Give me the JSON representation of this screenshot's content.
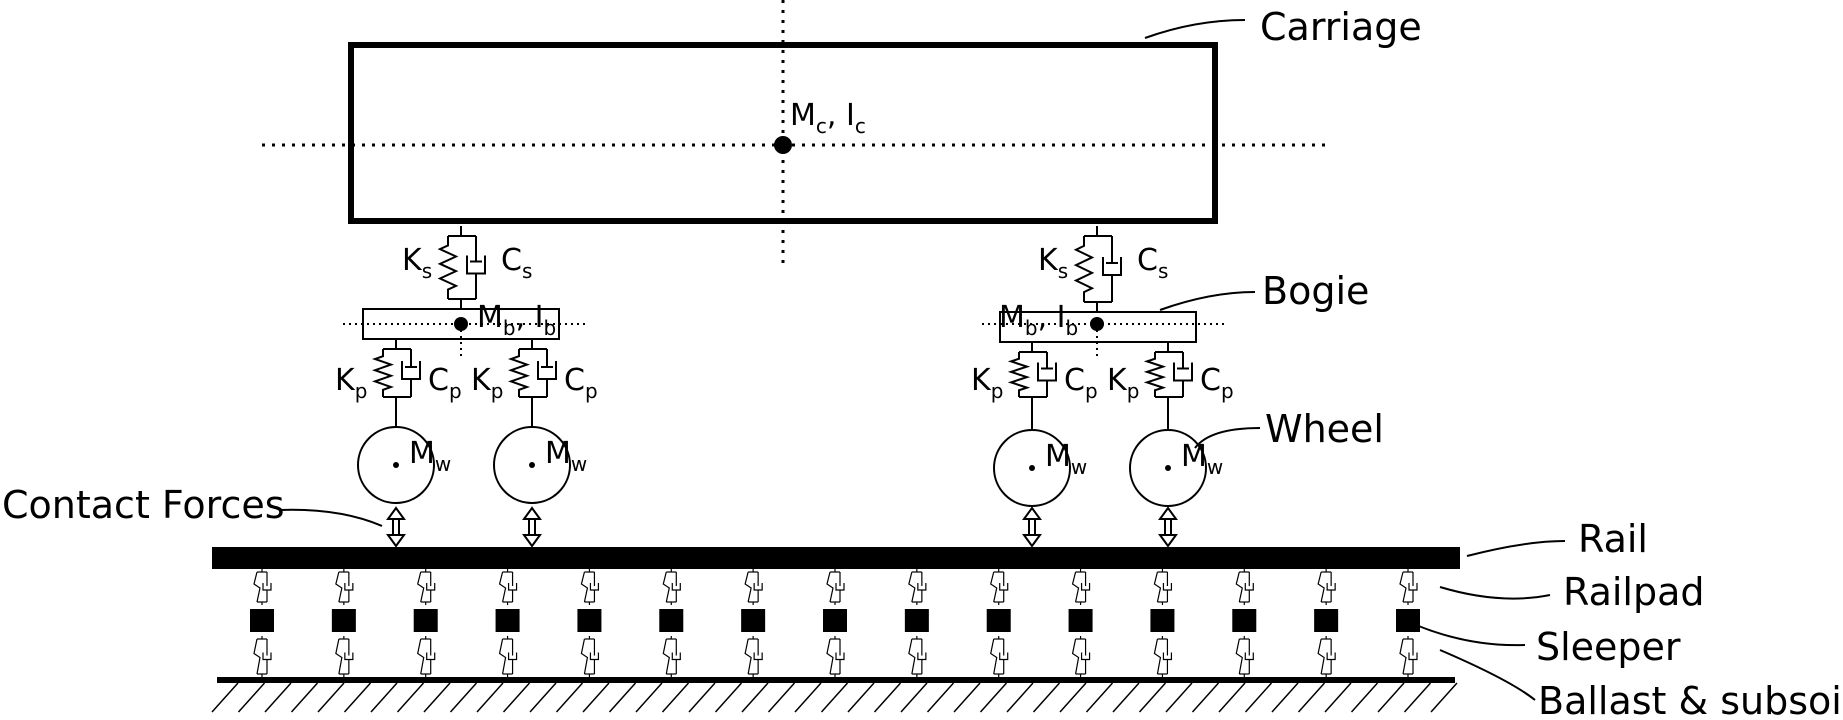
{
  "labels": {
    "carriage": "Carriage",
    "bogie": "Bogie",
    "wheel": "Wheel",
    "contact_forces": "Contact Forces",
    "rail": "Rail",
    "railpad": "Railpad",
    "sleeper": "Sleeper",
    "ballast": "Ballast & subsoil"
  },
  "symbols": {
    "carriage_mass": {
      "main1": "M",
      "sub1": "c",
      "mid": ", I",
      "sub2": "c"
    },
    "bogie_mass": {
      "main1": "M",
      "sub1": "b",
      "mid": ", I",
      "sub2": "b"
    },
    "secondary_spring": {
      "main": "K",
      "sub": "s"
    },
    "secondary_damper": {
      "main": "C",
      "sub": "s"
    },
    "primary_spring": {
      "main": "K",
      "sub": "p"
    },
    "primary_damper": {
      "main": "C",
      "sub": "p"
    },
    "wheel_mass": {
      "main": "M",
      "sub": "w"
    }
  },
  "sleeper_count": 15
}
